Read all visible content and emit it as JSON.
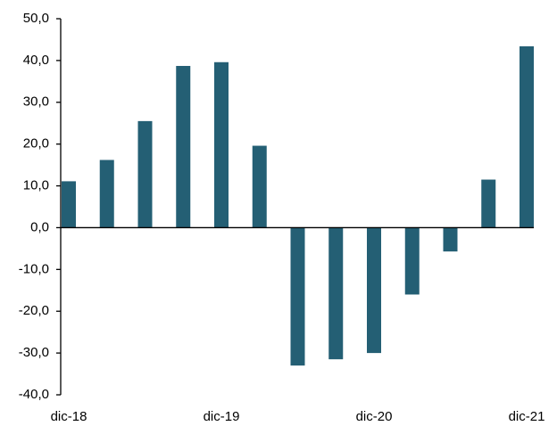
{
  "chart_data": {
    "type": "bar",
    "categories": [
      "dic-18",
      null,
      null,
      null,
      "dic-19",
      null,
      null,
      null,
      "dic-20",
      null,
      null,
      null,
      "dic-21"
    ],
    "values": [
      11.1,
      16.2,
      25.5,
      38.7,
      39.6,
      19.6,
      -33.0,
      -31.5,
      -30.0,
      -16.0,
      -5.7,
      11.5,
      43.4
    ],
    "color": "#245f74",
    "ylim": [
      -40,
      50
    ],
    "yticks": [
      {
        "value": -40,
        "label": "-40,0"
      },
      {
        "value": -30,
        "label": "-30,0"
      },
      {
        "value": -20,
        "label": "-20,0"
      },
      {
        "value": -10,
        "label": "-10,0"
      },
      {
        "value": 0,
        "label": "0,0"
      },
      {
        "value": 10,
        "label": "10,0"
      },
      {
        "value": 20,
        "label": "20,0"
      },
      {
        "value": 30,
        "label": "30,0"
      },
      {
        "value": 40,
        "label": "40,0"
      },
      {
        "value": 50,
        "label": "50,0"
      }
    ],
    "grid": false
  }
}
